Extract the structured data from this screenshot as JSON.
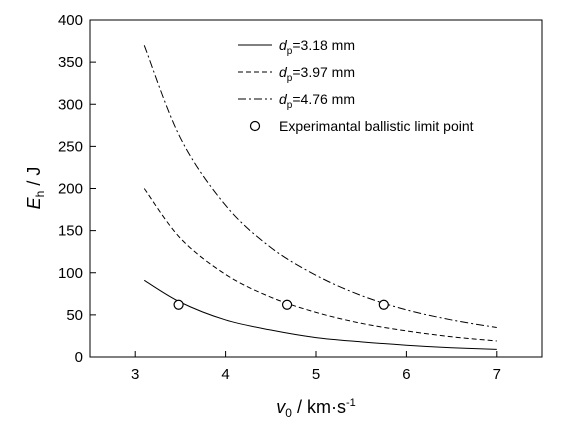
{
  "chart_data": {
    "type": "line",
    "xlim": [
      2.5,
      7.5
    ],
    "ylim": [
      0,
      400
    ],
    "xticks": [
      3,
      4,
      5,
      6,
      7
    ],
    "yticks": [
      0,
      50,
      100,
      150,
      200,
      250,
      300,
      350,
      400
    ],
    "xlabel": {
      "symbol": "v",
      "sub": "0",
      "unit": " / km·s",
      "sup": "-1"
    },
    "ylabel": {
      "symbol": "E",
      "sub": "h",
      "unit": " / J"
    },
    "legend_position": "top-right",
    "grid": false,
    "series": [
      {
        "name": {
          "symbol": "d",
          "sub": "p",
          "rest": "=3.18 mm"
        },
        "style": "solid",
        "x": [
          3.1,
          3.5,
          4.0,
          4.5,
          5.0,
          5.5,
          6.0,
          6.5,
          7.0
        ],
        "y": [
          91,
          65,
          44,
          32,
          23,
          18,
          14,
          11,
          9
        ]
      },
      {
        "name": {
          "symbol": "d",
          "sub": "p",
          "rest": "=3.97 mm"
        },
        "style": "dashed",
        "x": [
          3.1,
          3.5,
          4.0,
          4.5,
          5.0,
          5.5,
          6.0,
          6.5,
          7.0
        ],
        "y": [
          200,
          141,
          98,
          71,
          53,
          40,
          31,
          24,
          19
        ]
      },
      {
        "name": {
          "symbol": "d",
          "sub": "p",
          "rest": "=4.76 mm"
        },
        "style": "dashdot",
        "x": [
          3.1,
          3.5,
          4.0,
          4.5,
          5.0,
          5.5,
          6.0,
          6.5,
          7.0
        ],
        "y": [
          370,
          260,
          180,
          130,
          97,
          73,
          56,
          44,
          35
        ]
      },
      {
        "name": {
          "rest": "Experimantal ballistic limit point"
        },
        "style": "markers",
        "x": [
          3.48,
          4.68,
          5.75
        ],
        "y": [
          62,
          62,
          62
        ]
      }
    ]
  }
}
